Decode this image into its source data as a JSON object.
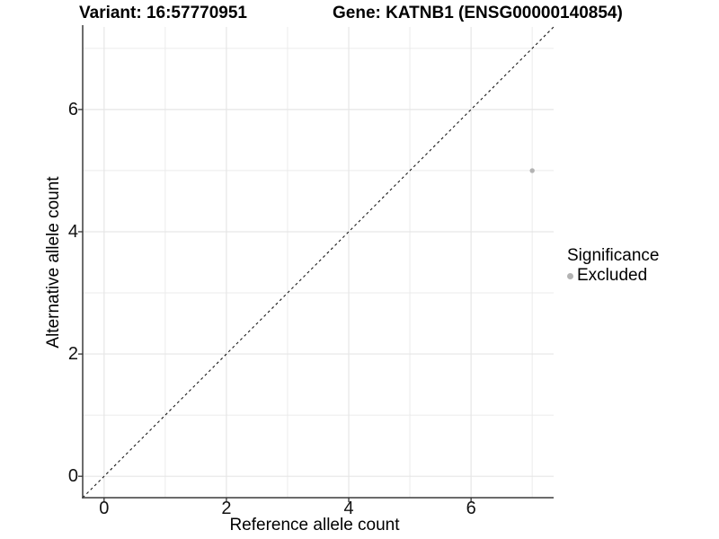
{
  "chart_data": {
    "type": "scatter",
    "title_left": "Variant: 16:57770951",
    "title_right": "Gene: KATNB1 (ENSG00000140854)",
    "xlabel": "Reference allele count",
    "ylabel": "Alternative allele count",
    "xlim": [
      -0.35,
      7.35
    ],
    "ylim": [
      -0.35,
      7.35
    ],
    "x_ticks": [
      0,
      2,
      4,
      6
    ],
    "y_ticks": [
      0,
      2,
      4,
      6
    ],
    "minor_gridlines": [
      1,
      3,
      5,
      7
    ],
    "grid": true,
    "points": [
      {
        "x": 7,
        "y": 5,
        "series": "Excluded"
      }
    ],
    "reference_line": {
      "type": "identity",
      "style": "dashed",
      "from": [
        -0.35,
        -0.35
      ],
      "to": [
        7.35,
        7.35
      ]
    },
    "legend": {
      "title": "Significance",
      "position": "right",
      "items": [
        {
          "label": "Excluded",
          "color": "#b3b3b3"
        }
      ]
    },
    "colors": {
      "point_excluded": "#b3b3b3",
      "grid_major": "#e6e6e6",
      "grid_minor": "#ebebeb",
      "axis_line": "#3c3c3c",
      "tick_mark": "#333333",
      "dashed_line": "#1a1a1a",
      "background": "#ffffff"
    }
  }
}
